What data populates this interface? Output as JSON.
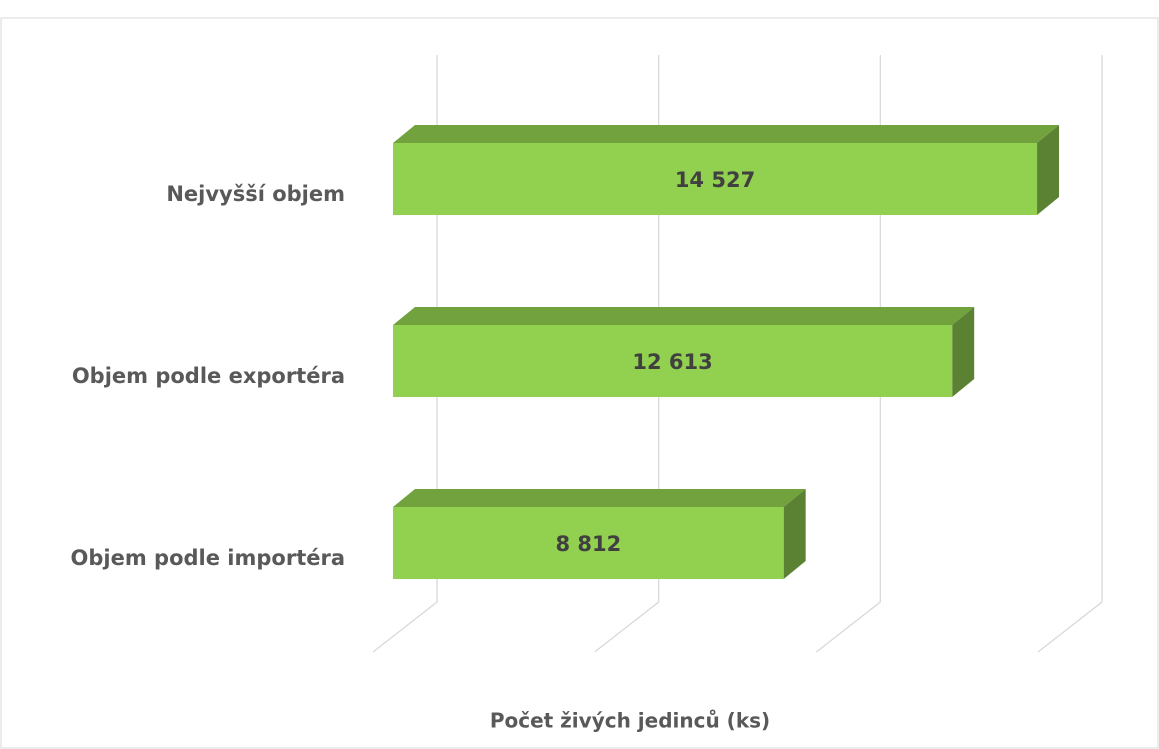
{
  "chart_data": {
    "type": "bar3d",
    "categories": [
      "Nejvyšší objem",
      "Objem podle exportéra",
      "Objem podle importéra"
    ],
    "values": [
      14527,
      12613,
      8812
    ],
    "value_labels": [
      "14 527",
      "12 613",
      "8 812"
    ],
    "color": "#92d050",
    "x_label": "Počet živých jedinců (ks)",
    "xlim": [
      0,
      15000
    ],
    "xticks": [
      0,
      5000,
      10000,
      15000
    ],
    "grid": true
  }
}
